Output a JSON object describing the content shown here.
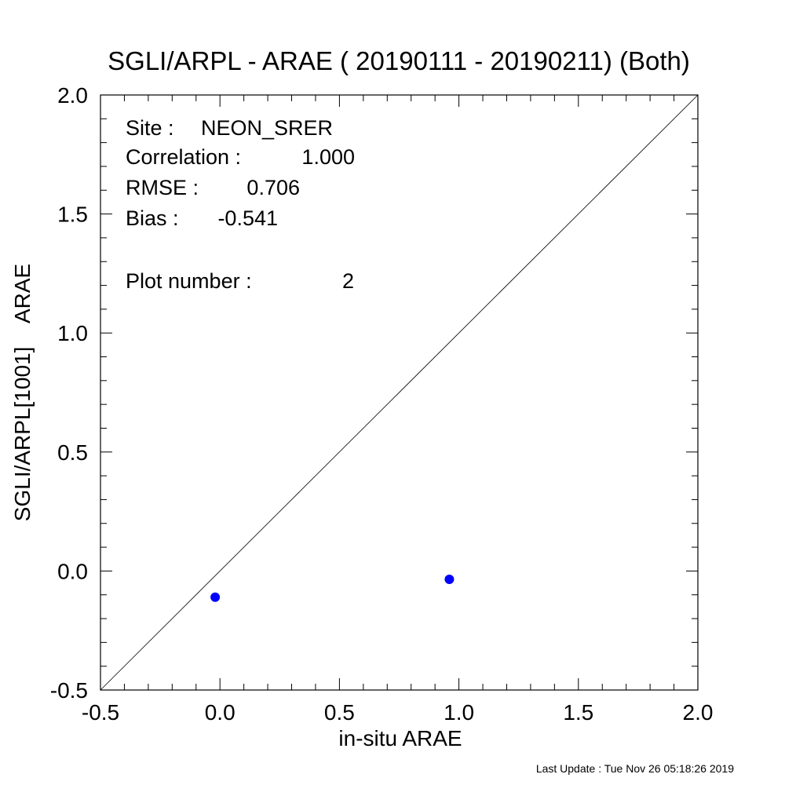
{
  "chart_data": {
    "type": "scatter",
    "title": "SGLI/ARPL - ARAE ( 20190111 - 20190211) (Both)",
    "xlabel": "in-situ ARAE",
    "ylabel": "SGLI/ARPL[1001]    ARAE",
    "xlim": [
      -0.5,
      2.0
    ],
    "ylim": [
      -0.5,
      2.0
    ],
    "xticks": [
      -0.5,
      0.0,
      0.5,
      1.0,
      1.5,
      2.0
    ],
    "xtick_labels": [
      "-0.5",
      "0.0",
      "0.5",
      "1.0",
      "1.5",
      "2.0"
    ],
    "yticks": [
      -0.5,
      0.0,
      0.5,
      1.0,
      1.5,
      2.0
    ],
    "ytick_labels": [
      "-0.5",
      "0.0",
      "0.5",
      "1.0",
      "1.5",
      "2.0"
    ],
    "minor_tick_step": 0.1,
    "grid": false,
    "reference_line": "1:1",
    "point_color": "#0000ff",
    "points": [
      {
        "x": -0.02,
        "y": -0.11
      },
      {
        "x": 0.96,
        "y": -0.035
      }
    ],
    "annotations": [
      {
        "label": "Site : ",
        "value": "NEON_SRER"
      },
      {
        "label": "Correlation : ",
        "value": "1.000"
      },
      {
        "label": "RMSE : ",
        "value": "0.706"
      },
      {
        "label": "Bias : ",
        "value": "-0.541"
      },
      {
        "label": "Plot number : ",
        "value": "2"
      }
    ]
  },
  "footer": "Last Update : Tue Nov 26 05:18:26 2019"
}
